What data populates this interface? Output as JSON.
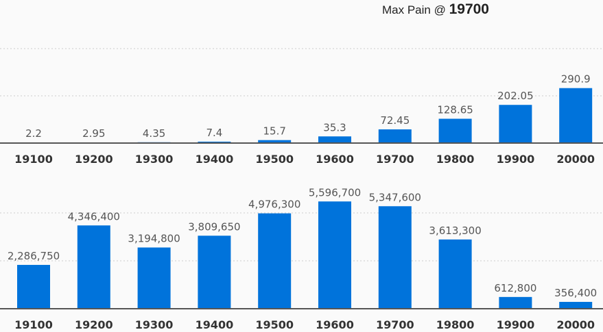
{
  "header": {
    "prefix": "Max Pain @",
    "value": "19700"
  },
  "chart_data": [
    {
      "type": "bar",
      "categories": [
        "19100",
        "19200",
        "19300",
        "19400",
        "19500",
        "19600",
        "19700",
        "19800",
        "19900",
        "20000"
      ],
      "values": [
        2.2,
        2.95,
        4.35,
        7.4,
        15.7,
        35.3,
        72.45,
        128.65,
        202.05,
        290.9
      ],
      "data_labels": [
        "2.2",
        "2.95",
        "4.35",
        "7.4",
        "15.7",
        "35.3",
        "72.45",
        "128.65",
        "202.05",
        "290.9"
      ],
      "gridlines": [
        250,
        500
      ],
      "ylim": [
        0,
        500
      ],
      "grid": true,
      "color": "#0073db"
    },
    {
      "type": "bar",
      "categories": [
        "19100",
        "19200",
        "19300",
        "19400",
        "19500",
        "19600",
        "19700",
        "19800",
        "19900",
        "20000"
      ],
      "values": [
        2286750,
        4346400,
        3194800,
        3809650,
        4976300,
        5596700,
        5347600,
        3613300,
        612800,
        356400
      ],
      "data_labels": [
        "2,286,750",
        "4,346,400",
        "3,194,800",
        "3,809,650",
        "4,976,300",
        "5,596,700",
        "5,347,600",
        "3,613,300",
        "612,800",
        "356,400"
      ],
      "gridlines": [
        2500000,
        5000000
      ],
      "ylim": [
        0,
        5000000
      ],
      "grid": true,
      "color": "#0073db"
    }
  ]
}
